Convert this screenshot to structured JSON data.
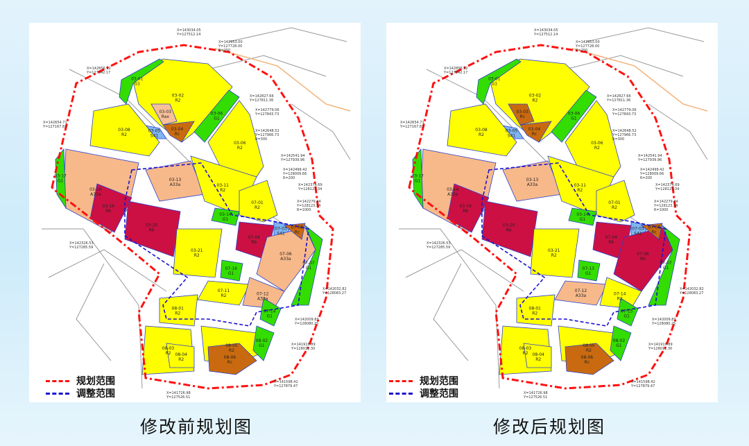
{
  "panels": [
    {
      "caption": "修改前规划图",
      "legend": [
        {
          "label": "规划范围",
          "color": "#ff1010"
        },
        {
          "label": "调整范围",
          "color": "#1a10d0"
        }
      ]
    },
    {
      "caption": "修改后规划图",
      "legend": [
        {
          "label": "规划范围",
          "color": "#ff1010"
        },
        {
          "label": "调整范围",
          "color": "#1a10d0"
        }
      ]
    }
  ],
  "land_use_colors": {
    "R2": "#ffff00",
    "G1": "#33dd00",
    "A33a": "#f7b98a",
    "Rb": "#cc1044",
    "Rc": "#c96a10",
    "Rax": "#f7c099",
    "S41": "#7fb5f0",
    "road": "#ffffff"
  },
  "parcels_before": [
    {
      "code": "03-02",
      "use": "R2"
    },
    {
      "code": "03-01",
      "use": "G1"
    },
    {
      "code": "03-03",
      "use": "Rax"
    },
    {
      "code": "03-04",
      "use": "Rc"
    },
    {
      "code": "03-05",
      "use": "S41"
    },
    {
      "code": "03-06",
      "use": "G1"
    },
    {
      "code": "03-06",
      "use": "R2"
    },
    {
      "code": "03-08",
      "use": "R2"
    },
    {
      "code": "03-16",
      "use": "A33a"
    },
    {
      "code": "03-19",
      "use": "Rb"
    },
    {
      "code": "03-17",
      "use": "G1"
    },
    {
      "code": "03-20",
      "use": "Rb"
    },
    {
      "code": "03-13",
      "use": "A33a"
    },
    {
      "code": "03-11",
      "use": "R2"
    },
    {
      "code": "03-14",
      "use": "G1"
    },
    {
      "code": "07-01",
      "use": "R2"
    },
    {
      "code": "07-04",
      "use": "Rb"
    },
    {
      "code": "07-03",
      "use": "S41"
    },
    {
      "code": "07-06",
      "use": "A33a"
    },
    {
      "code": "07-08",
      "use": "Rc"
    },
    {
      "code": "07-07",
      "use": "G1"
    },
    {
      "code": "03-21",
      "use": "R2"
    },
    {
      "code": "07-16",
      "use": "G1"
    },
    {
      "code": "07-11",
      "use": "R2"
    },
    {
      "code": "07-12",
      "use": "A33a"
    },
    {
      "code": "08-01",
      "use": "R2"
    },
    {
      "code": "08-03",
      "use": "R2"
    },
    {
      "code": "08-04",
      "use": "R2"
    },
    {
      "code": "08-05",
      "use": "R2"
    },
    {
      "code": "08-06",
      "use": "Rc"
    },
    {
      "code": "08-02",
      "use": "G1"
    },
    {
      "code": "07-14",
      "use": "G1"
    }
  ],
  "parcels_after": [
    {
      "code": "03-02",
      "use": "R2"
    },
    {
      "code": "03-01",
      "use": "G1"
    },
    {
      "code": "03-03",
      "use": "Rc"
    },
    {
      "code": "03-04",
      "use": "Rc"
    },
    {
      "code": "03-05",
      "use": "S41"
    },
    {
      "code": "03-06",
      "use": "G1"
    },
    {
      "code": "03-06",
      "use": "R2"
    },
    {
      "code": "03-08",
      "use": "R2"
    },
    {
      "code": "03-16",
      "use": "A33a"
    },
    {
      "code": "03-19",
      "use": "Rb"
    },
    {
      "code": "03-17",
      "use": "G1"
    },
    {
      "code": "03-20",
      "use": "Rb"
    },
    {
      "code": "03-13",
      "use": "A33a"
    },
    {
      "code": "03-11",
      "use": "R2"
    },
    {
      "code": "03-14",
      "use": "G1"
    },
    {
      "code": "07-01",
      "use": "R2"
    },
    {
      "code": "07-04",
      "use": "Rb"
    },
    {
      "code": "07-03",
      "use": "S41"
    },
    {
      "code": "07-06",
      "use": "Rb"
    },
    {
      "code": "07-08",
      "use": "Rc"
    },
    {
      "code": "07-07",
      "use": "G1"
    },
    {
      "code": "03-21",
      "use": "R2"
    },
    {
      "code": "07-13",
      "use": "G1"
    },
    {
      "code": "07-12",
      "use": "A33a"
    },
    {
      "code": "07-14",
      "use": "R2"
    },
    {
      "code": "08-01",
      "use": "R2"
    },
    {
      "code": "08-03",
      "use": "R2"
    },
    {
      "code": "08-04",
      "use": "R2"
    },
    {
      "code": "08-05",
      "use": "R2"
    },
    {
      "code": "08-06",
      "use": "Rc"
    },
    {
      "code": "08-02",
      "use": "G1"
    },
    {
      "code": "07-15",
      "use": "G1"
    }
  ],
  "coordinate_labels": [
    "X=143034.05 Y=127512.14",
    "X=142953.00 Y=127728.00 R=250",
    "X=142856.32 Y=127342.17",
    "X=142654.71 Y=127167.82",
    "X=142827.66 Y=127811.36",
    "X=142779.06 Y=127843.73",
    "X=142648.52 Y=127966.73 R=300",
    "X=142541.94 Y=127939.96",
    "X=142499.42 Y=128009.66 R=200",
    "X=142374.69 Y=128123.34",
    "X=142279.44 Y=128123.34 R=1000",
    "X=142326.53 Y=127285.59",
    "X=142032.82 Y=128083.27",
    "X=142009.83 Y=128080.25",
    "X=141919.89 Y=128012.30",
    "X=141726.98 Y=127526.51",
    "X=141598.42 Y=127879.47"
  ]
}
